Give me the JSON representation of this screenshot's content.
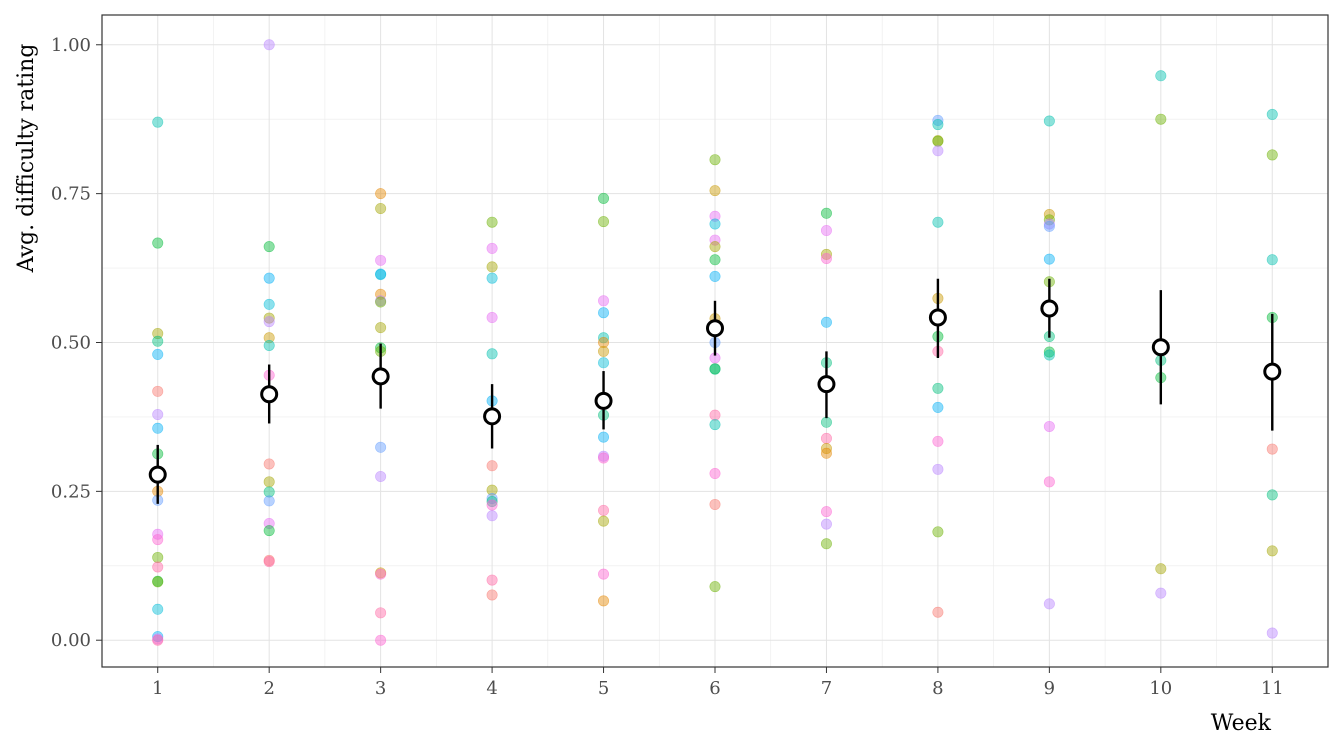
{
  "chart_data": {
    "type": "scatter",
    "xlabel": "Week",
    "ylabel": "Avg. difficulty rating",
    "x_ticks": [
      "1",
      "2",
      "3",
      "4",
      "5",
      "6",
      "7",
      "8",
      "9",
      "10",
      "11"
    ],
    "y_ticks": [
      "0.00",
      "0.25",
      "0.50",
      "0.75",
      "1.00"
    ],
    "xlim": [
      0.5,
      11.5
    ],
    "ylim": [
      -0.045,
      1.05
    ],
    "grid": true,
    "legend": "none",
    "colors": {
      "point_palette": [
        "#F8766D",
        "#E58700",
        "#C99800",
        "#A3A500",
        "#6BB100",
        "#00BA38",
        "#00BF7D",
        "#00C0AF",
        "#00BCD8",
        "#00B0F6",
        "#619CFF",
        "#B983FF",
        "#E76BF3",
        "#FD61D1",
        "#FF67A4"
      ],
      "summary_point": "#000000",
      "summary_fill": "#ffffff"
    },
    "series": [
      {
        "kind": "individual",
        "points": [
          {
            "x": 1,
            "y": 0.87,
            "c": 7
          },
          {
            "x": 1,
            "y": 0.667,
            "c": 5
          },
          {
            "x": 1,
            "y": 0.515,
            "c": 3
          },
          {
            "x": 1,
            "y": 0.502,
            "c": 6
          },
          {
            "x": 1,
            "y": 0.48,
            "c": 9
          },
          {
            "x": 1,
            "y": 0.418,
            "c": 0
          },
          {
            "x": 1,
            "y": 0.379,
            "c": 11
          },
          {
            "x": 1,
            "y": 0.356,
            "c": 9
          },
          {
            "x": 1,
            "y": 0.313,
            "c": 5
          },
          {
            "x": 1,
            "y": 0.25,
            "c": 1
          },
          {
            "x": 1,
            "y": 0.235,
            "c": 10
          },
          {
            "x": 1,
            "y": 0.178,
            "c": 12
          },
          {
            "x": 1,
            "y": 0.169,
            "c": 13
          },
          {
            "x": 1,
            "y": 0.139,
            "c": 4
          },
          {
            "x": 1,
            "y": 0.123,
            "c": 14
          },
          {
            "x": 1,
            "y": 0.099,
            "c": 5
          },
          {
            "x": 1,
            "y": 0.098,
            "c": 4
          },
          {
            "x": 1,
            "y": 0.052,
            "c": 8
          },
          {
            "x": 1,
            "y": 0.006,
            "c": 9
          },
          {
            "x": 1,
            "y": 0.002,
            "c": 12
          },
          {
            "x": 1,
            "y": 0.0,
            "c": 14
          },
          {
            "x": 2,
            "y": 1.0,
            "c": 11
          },
          {
            "x": 2,
            "y": 0.661,
            "c": 5
          },
          {
            "x": 2,
            "y": 0.608,
            "c": 9
          },
          {
            "x": 2,
            "y": 0.564,
            "c": 8
          },
          {
            "x": 2,
            "y": 0.541,
            "c": 3
          },
          {
            "x": 2,
            "y": 0.535,
            "c": 11
          },
          {
            "x": 2,
            "y": 0.508,
            "c": 2
          },
          {
            "x": 2,
            "y": 0.495,
            "c": 7
          },
          {
            "x": 2,
            "y": 0.445,
            "c": 13
          },
          {
            "x": 2,
            "y": 0.296,
            "c": 0
          },
          {
            "x": 2,
            "y": 0.266,
            "c": 3
          },
          {
            "x": 2,
            "y": 0.249,
            "c": 6
          },
          {
            "x": 2,
            "y": 0.234,
            "c": 10
          },
          {
            "x": 2,
            "y": 0.196,
            "c": 12
          },
          {
            "x": 2,
            "y": 0.184,
            "c": 5
          },
          {
            "x": 2,
            "y": 0.134,
            "c": 0
          },
          {
            "x": 2,
            "y": 0.132,
            "c": 14
          },
          {
            "x": 3,
            "y": 0.75,
            "c": 1
          },
          {
            "x": 3,
            "y": 0.725,
            "c": 3
          },
          {
            "x": 3,
            "y": 0.638,
            "c": 12
          },
          {
            "x": 3,
            "y": 0.615,
            "c": 9
          },
          {
            "x": 3,
            "y": 0.614,
            "c": 8
          },
          {
            "x": 3,
            "y": 0.581,
            "c": 1
          },
          {
            "x": 3,
            "y": 0.57,
            "c": 11
          },
          {
            "x": 3,
            "y": 0.568,
            "c": 4
          },
          {
            "x": 3,
            "y": 0.525,
            "c": 3
          },
          {
            "x": 3,
            "y": 0.491,
            "c": 5
          },
          {
            "x": 3,
            "y": 0.485,
            "c": 4
          },
          {
            "x": 3,
            "y": 0.324,
            "c": 10
          },
          {
            "x": 3,
            "y": 0.275,
            "c": 11
          },
          {
            "x": 3,
            "y": 0.113,
            "c": 2
          },
          {
            "x": 3,
            "y": 0.111,
            "c": 13
          },
          {
            "x": 3,
            "y": 0.046,
            "c": 14
          },
          {
            "x": 3,
            "y": 0.0,
            "c": 13
          },
          {
            "x": 4,
            "y": 0.702,
            "c": 4
          },
          {
            "x": 4,
            "y": 0.658,
            "c": 12
          },
          {
            "x": 4,
            "y": 0.627,
            "c": 3
          },
          {
            "x": 4,
            "y": 0.608,
            "c": 8
          },
          {
            "x": 4,
            "y": 0.542,
            "c": 12
          },
          {
            "x": 4,
            "y": 0.481,
            "c": 7
          },
          {
            "x": 4,
            "y": 0.402,
            "c": 9
          },
          {
            "x": 4,
            "y": 0.293,
            "c": 0
          },
          {
            "x": 4,
            "y": 0.252,
            "c": 3
          },
          {
            "x": 4,
            "y": 0.238,
            "c": 10
          },
          {
            "x": 4,
            "y": 0.233,
            "c": 6
          },
          {
            "x": 4,
            "y": 0.227,
            "c": 13
          },
          {
            "x": 4,
            "y": 0.209,
            "c": 11
          },
          {
            "x": 4,
            "y": 0.101,
            "c": 14
          },
          {
            "x": 4,
            "y": 0.076,
            "c": 0
          },
          {
            "x": 5,
            "y": 0.742,
            "c": 5
          },
          {
            "x": 5,
            "y": 0.703,
            "c": 4
          },
          {
            "x": 5,
            "y": 0.57,
            "c": 12
          },
          {
            "x": 5,
            "y": 0.55,
            "c": 9
          },
          {
            "x": 5,
            "y": 0.508,
            "c": 7
          },
          {
            "x": 5,
            "y": 0.5,
            "c": 1
          },
          {
            "x": 5,
            "y": 0.485,
            "c": 2
          },
          {
            "x": 5,
            "y": 0.466,
            "c": 8
          },
          {
            "x": 5,
            "y": 0.378,
            "c": 6
          },
          {
            "x": 5,
            "y": 0.341,
            "c": 9
          },
          {
            "x": 5,
            "y": 0.309,
            "c": 11
          },
          {
            "x": 5,
            "y": 0.306,
            "c": 13
          },
          {
            "x": 5,
            "y": 0.218,
            "c": 14
          },
          {
            "x": 5,
            "y": 0.2,
            "c": 3
          },
          {
            "x": 5,
            "y": 0.111,
            "c": 13
          },
          {
            "x": 5,
            "y": 0.066,
            "c": 1
          },
          {
            "x": 6,
            "y": 0.807,
            "c": 4
          },
          {
            "x": 6,
            "y": 0.755,
            "c": 2
          },
          {
            "x": 6,
            "y": 0.712,
            "c": 12
          },
          {
            "x": 6,
            "y": 0.699,
            "c": 8
          },
          {
            "x": 6,
            "y": 0.672,
            "c": 12
          },
          {
            "x": 6,
            "y": 0.661,
            "c": 3
          },
          {
            "x": 6,
            "y": 0.639,
            "c": 5
          },
          {
            "x": 6,
            "y": 0.611,
            "c": 9
          },
          {
            "x": 6,
            "y": 0.54,
            "c": 2
          },
          {
            "x": 6,
            "y": 0.5,
            "c": 10
          },
          {
            "x": 6,
            "y": 0.474,
            "c": 12
          },
          {
            "x": 6,
            "y": 0.456,
            "c": 5
          },
          {
            "x": 6,
            "y": 0.455,
            "c": 6
          },
          {
            "x": 6,
            "y": 0.378,
            "c": 14
          },
          {
            "x": 6,
            "y": 0.362,
            "c": 7
          },
          {
            "x": 6,
            "y": 0.28,
            "c": 13
          },
          {
            "x": 6,
            "y": 0.228,
            "c": 0
          },
          {
            "x": 6,
            "y": 0.09,
            "c": 4
          },
          {
            "x": 7,
            "y": 0.717,
            "c": 5
          },
          {
            "x": 7,
            "y": 0.688,
            "c": 12
          },
          {
            "x": 7,
            "y": 0.648,
            "c": 3
          },
          {
            "x": 7,
            "y": 0.641,
            "c": 13
          },
          {
            "x": 7,
            "y": 0.534,
            "c": 9
          },
          {
            "x": 7,
            "y": 0.466,
            "c": 6
          },
          {
            "x": 7,
            "y": 0.366,
            "c": 6
          },
          {
            "x": 7,
            "y": 0.339,
            "c": 14
          },
          {
            "x": 7,
            "y": 0.322,
            "c": 2
          },
          {
            "x": 7,
            "y": 0.314,
            "c": 1
          },
          {
            "x": 7,
            "y": 0.216,
            "c": 13
          },
          {
            "x": 7,
            "y": 0.195,
            "c": 11
          },
          {
            "x": 7,
            "y": 0.162,
            "c": 4
          },
          {
            "x": 8,
            "y": 0.873,
            "c": 10
          },
          {
            "x": 8,
            "y": 0.866,
            "c": 7
          },
          {
            "x": 8,
            "y": 0.839,
            "c": 3
          },
          {
            "x": 8,
            "y": 0.838,
            "c": 4
          },
          {
            "x": 8,
            "y": 0.822,
            "c": 11
          },
          {
            "x": 8,
            "y": 0.702,
            "c": 7
          },
          {
            "x": 8,
            "y": 0.574,
            "c": 2
          },
          {
            "x": 8,
            "y": 0.51,
            "c": 5
          },
          {
            "x": 8,
            "y": 0.485,
            "c": 14
          },
          {
            "x": 8,
            "y": 0.423,
            "c": 6
          },
          {
            "x": 8,
            "y": 0.391,
            "c": 9
          },
          {
            "x": 8,
            "y": 0.334,
            "c": 13
          },
          {
            "x": 8,
            "y": 0.287,
            "c": 11
          },
          {
            "x": 8,
            "y": 0.182,
            "c": 4
          },
          {
            "x": 8,
            "y": 0.047,
            "c": 0
          },
          {
            "x": 9,
            "y": 0.872,
            "c": 7
          },
          {
            "x": 9,
            "y": 0.715,
            "c": 2
          },
          {
            "x": 9,
            "y": 0.706,
            "c": 4
          },
          {
            "x": 9,
            "y": 0.699,
            "c": 11
          },
          {
            "x": 9,
            "y": 0.695,
            "c": 10
          },
          {
            "x": 9,
            "y": 0.64,
            "c": 9
          },
          {
            "x": 9,
            "y": 0.602,
            "c": 4
          },
          {
            "x": 9,
            "y": 0.51,
            "c": 6
          },
          {
            "x": 9,
            "y": 0.484,
            "c": 5
          },
          {
            "x": 9,
            "y": 0.479,
            "c": 7
          },
          {
            "x": 9,
            "y": 0.359,
            "c": 12
          },
          {
            "x": 9,
            "y": 0.266,
            "c": 13
          },
          {
            "x": 9,
            "y": 0.061,
            "c": 11
          },
          {
            "x": 10,
            "y": 0.948,
            "c": 7
          },
          {
            "x": 10,
            "y": 0.875,
            "c": 4
          },
          {
            "x": 10,
            "y": 0.47,
            "c": 6
          },
          {
            "x": 10,
            "y": 0.441,
            "c": 5
          },
          {
            "x": 10,
            "y": 0.12,
            "c": 3
          },
          {
            "x": 10,
            "y": 0.079,
            "c": 11
          },
          {
            "x": 11,
            "y": 0.883,
            "c": 7
          },
          {
            "x": 11,
            "y": 0.815,
            "c": 4
          },
          {
            "x": 11,
            "y": 0.639,
            "c": 7
          },
          {
            "x": 11,
            "y": 0.542,
            "c": 5
          },
          {
            "x": 11,
            "y": 0.321,
            "c": 0
          },
          {
            "x": 11,
            "y": 0.244,
            "c": 6
          },
          {
            "x": 11,
            "y": 0.15,
            "c": 3
          },
          {
            "x": 11,
            "y": 0.012,
            "c": 11
          }
        ]
      },
      {
        "kind": "summary",
        "points": [
          {
            "x": 1,
            "y": 0.278,
            "lo": 0.229,
            "hi": 0.328
          },
          {
            "x": 2,
            "y": 0.413,
            "lo": 0.364,
            "hi": 0.463
          },
          {
            "x": 3,
            "y": 0.443,
            "lo": 0.389,
            "hi": 0.498
          },
          {
            "x": 4,
            "y": 0.376,
            "lo": 0.322,
            "hi": 0.43
          },
          {
            "x": 5,
            "y": 0.402,
            "lo": 0.354,
            "hi": 0.452
          },
          {
            "x": 6,
            "y": 0.524,
            "lo": 0.478,
            "hi": 0.57
          },
          {
            "x": 7,
            "y": 0.43,
            "lo": 0.373,
            "hi": 0.485
          },
          {
            "x": 8,
            "y": 0.542,
            "lo": 0.474,
            "hi": 0.607
          },
          {
            "x": 9,
            "y": 0.557,
            "lo": 0.508,
            "hi": 0.607
          },
          {
            "x": 10,
            "y": 0.492,
            "lo": 0.396,
            "hi": 0.588
          },
          {
            "x": 11,
            "y": 0.451,
            "lo": 0.352,
            "hi": 0.548
          }
        ]
      }
    ]
  }
}
